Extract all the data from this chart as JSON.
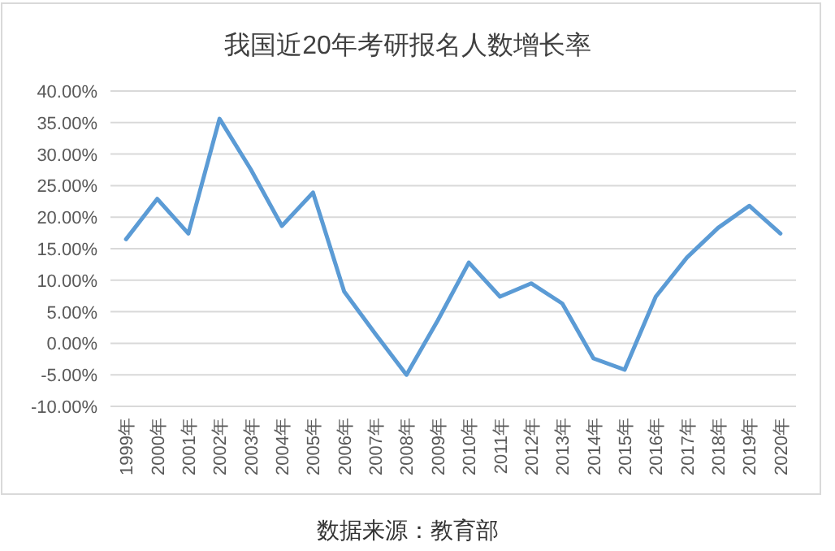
{
  "chart_data": {
    "type": "line",
    "title": "我国近20年考研报名人数增长率",
    "categories": [
      "1999年",
      "2000年",
      "2001年",
      "2002年",
      "2003年",
      "2004年",
      "2005年",
      "2006年",
      "2007年",
      "2008年",
      "2009年",
      "2010年",
      "2011年",
      "2012年",
      "2013年",
      "2014年",
      "2015年",
      "2016年",
      "2017年",
      "2018年",
      "2019年",
      "2020年"
    ],
    "series": [
      {
        "color": "#5b9bd5",
        "values": [
          16.5,
          22.9,
          17.4,
          35.6,
          27.6,
          18.6,
          23.9,
          8.2,
          1.5,
          -5.0,
          3.6,
          12.8,
          7.4,
          9.5,
          6.3,
          -2.4,
          -4.2,
          7.4,
          13.6,
          18.3,
          21.8,
          17.4
        ]
      }
    ],
    "ylim": [
      -10,
      40
    ],
    "yticks": [
      {
        "value": -10,
        "label": "-10.00%"
      },
      {
        "value": -5,
        "label": "-5.00%"
      },
      {
        "value": 0,
        "label": "0.00%"
      },
      {
        "value": 5,
        "label": "5.00%"
      },
      {
        "value": 10,
        "label": "10.00%"
      },
      {
        "value": 15,
        "label": "15.00%"
      },
      {
        "value": 20,
        "label": "20.00%"
      },
      {
        "value": 25,
        "label": "25.00%"
      },
      {
        "value": 30,
        "label": "30.00%"
      },
      {
        "value": 35,
        "label": "35.00%"
      },
      {
        "value": 40,
        "label": "40.00%"
      }
    ],
    "grid": "y",
    "annotations": [
      "数据来源：教育部"
    ]
  }
}
